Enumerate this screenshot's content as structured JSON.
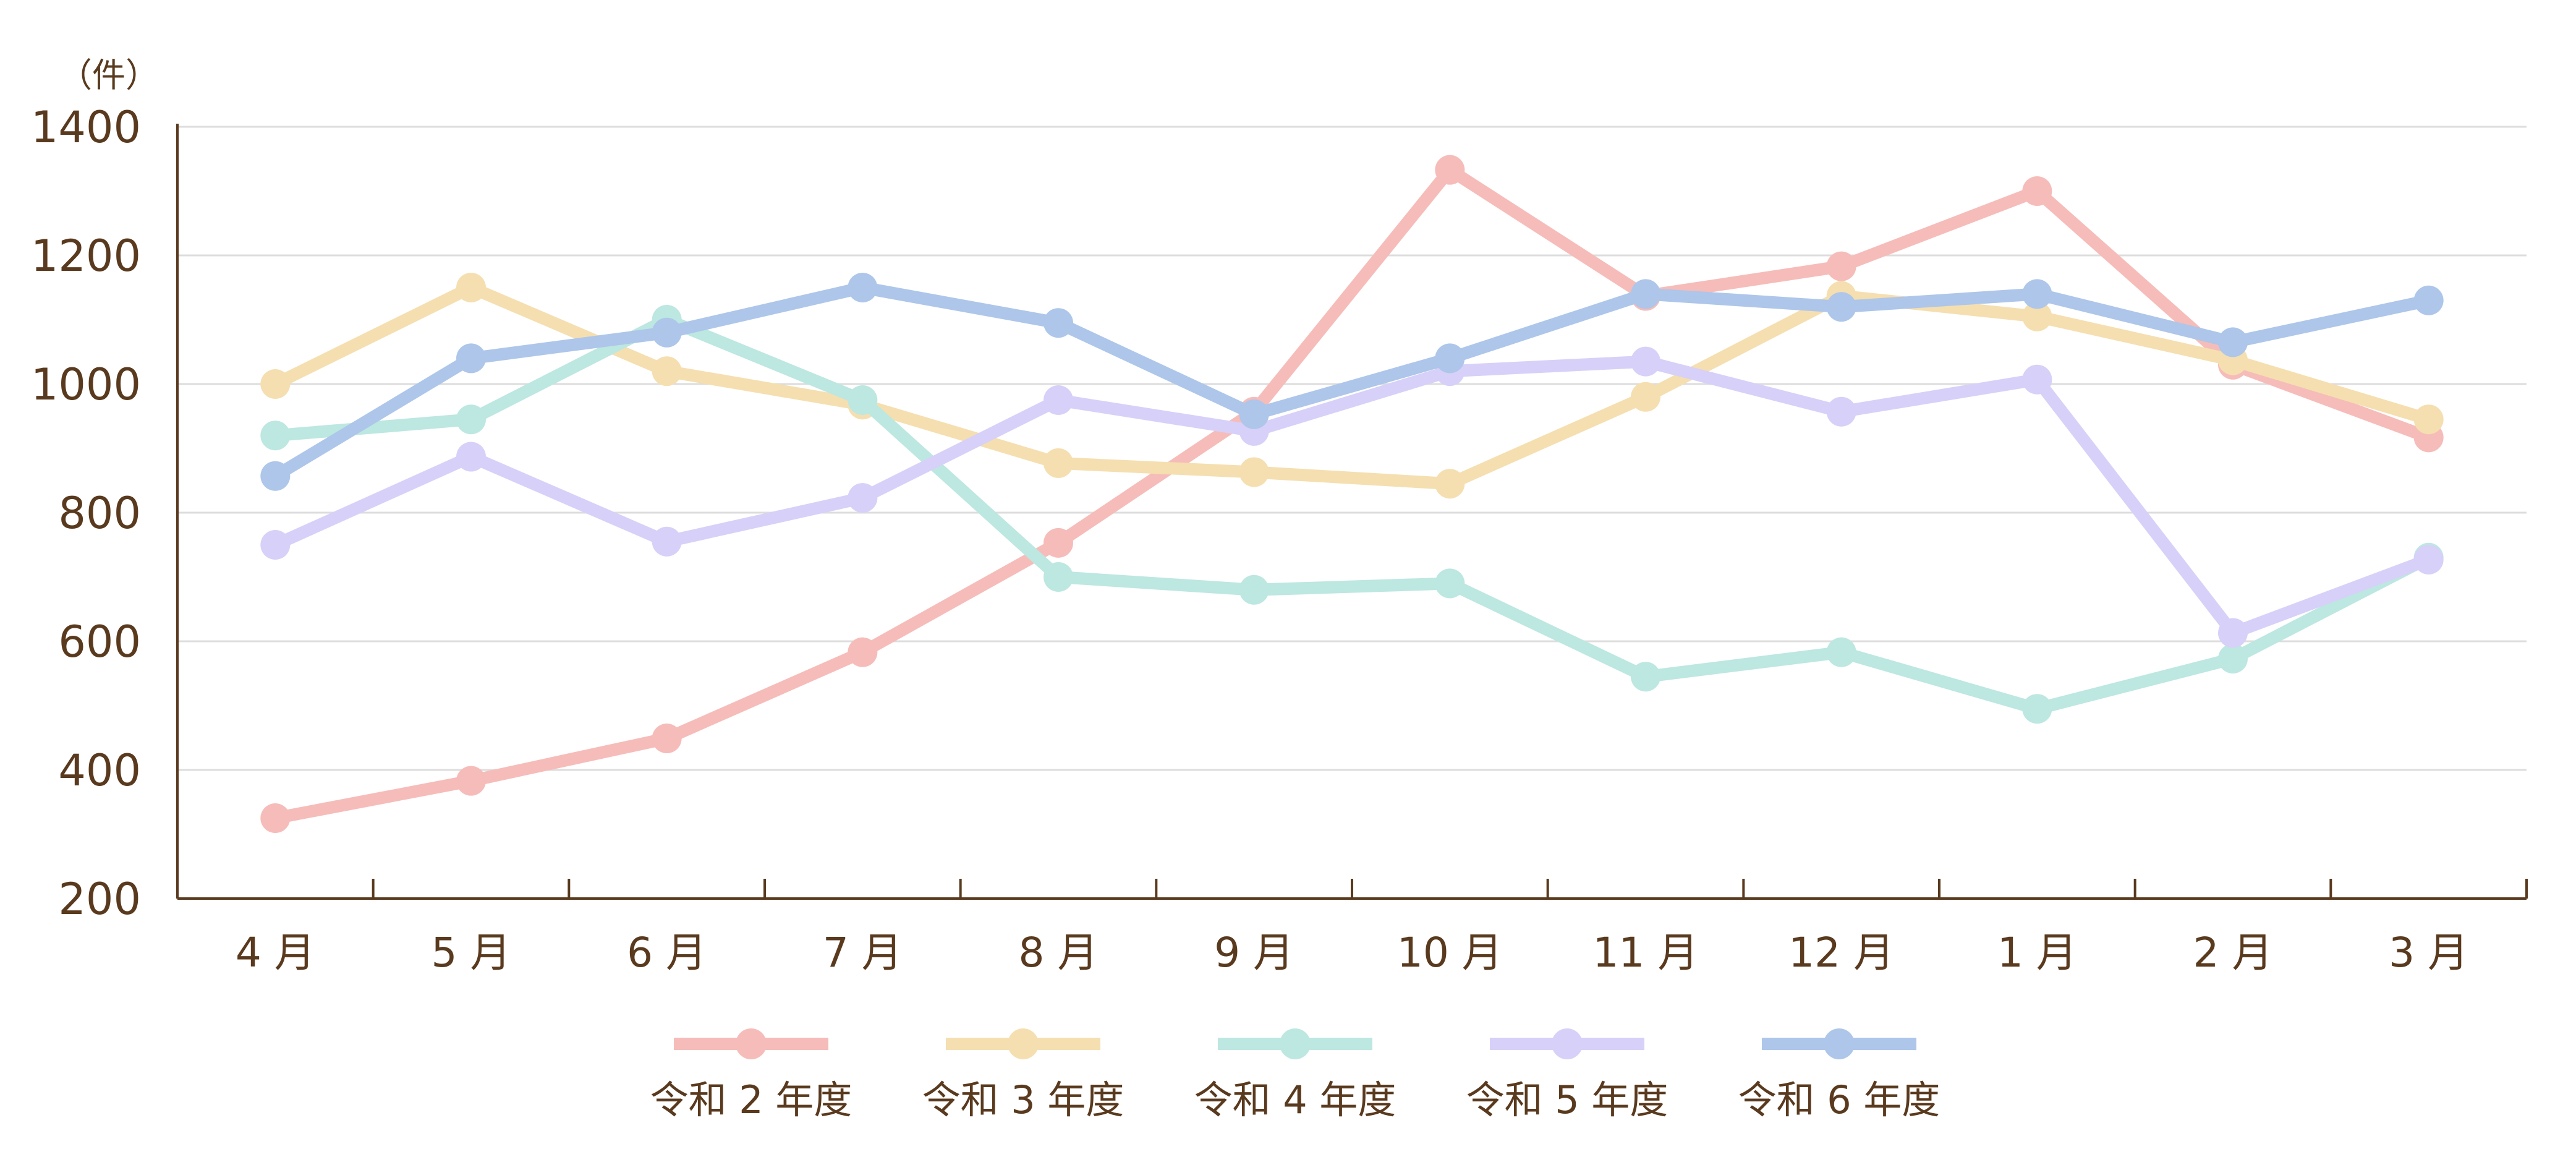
{
  "chart_data": {
    "type": "line",
    "title": "",
    "xlabel": "",
    "ylabel": "（件）",
    "ylim": [
      200,
      1400
    ],
    "yticks": [
      200,
      400,
      600,
      800,
      1000,
      1200,
      1400
    ],
    "grid": true,
    "legend_position": "bottom",
    "categories": [
      "4 月",
      "5 月",
      "6 月",
      "7 月",
      "8 月",
      "9 月",
      "10 月",
      "11 月",
      "12 月",
      "1 月",
      "2 月",
      "3 月"
    ],
    "series": [
      {
        "name": "令和 2 年度",
        "color": "#f6bcb9",
        "values": [
          325,
          383,
          449,
          583,
          753,
          957,
          1333,
          1137,
          1183,
          1300,
          1030,
          917
        ]
      },
      {
        "name": "令和 3 年度",
        "color": "#f5dfb0",
        "values": [
          1000,
          1150,
          1020,
          968,
          877,
          863,
          845,
          980,
          1137,
          1105,
          1037,
          945
        ]
      },
      {
        "name": "令和 4 年度",
        "color": "#bde7e1",
        "values": [
          920,
          945,
          1100,
          975,
          700,
          680,
          690,
          545,
          583,
          495,
          573,
          730
        ]
      },
      {
        "name": "令和 5 年度",
        "color": "#d7d0f8",
        "values": [
          750,
          887,
          755,
          823,
          975,
          927,
          1020,
          1035,
          957,
          1007,
          613,
          727
        ]
      },
      {
        "name": "令和 6 年度",
        "color": "#adc6ea",
        "values": [
          857,
          1040,
          1080,
          1150,
          1095,
          953,
          1040,
          1140,
          1120,
          1140,
          1065,
          1130
        ]
      }
    ]
  }
}
